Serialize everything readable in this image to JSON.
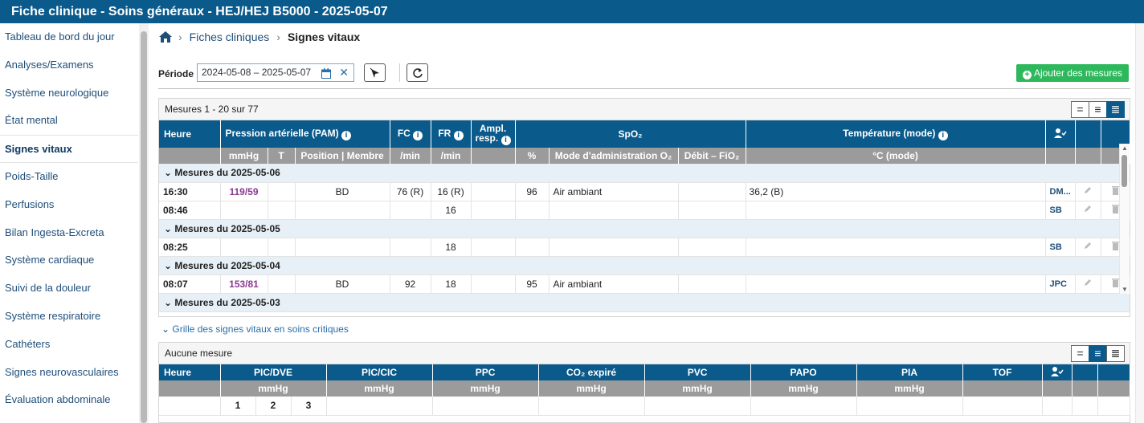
{
  "title": "Fiche clinique - Soins généraux - HEJ/HEJ B5000 - 2025-05-07",
  "sidebar": {
    "items": [
      {
        "label": "Tableau de bord du jour",
        "active": false
      },
      {
        "label": "Analyses/Examens",
        "active": false
      },
      {
        "label": "Système neurologique",
        "active": false
      },
      {
        "label": "État mental",
        "active": false
      },
      {
        "label": "Signes vitaux",
        "active": true
      },
      {
        "label": "Poids-Taille",
        "active": false
      },
      {
        "label": "Perfusions",
        "active": false
      },
      {
        "label": "Bilan Ingesta-Excreta",
        "active": false
      },
      {
        "label": "Système cardiaque",
        "active": false
      },
      {
        "label": "Suivi de la douleur",
        "active": false
      },
      {
        "label": "Système respiratoire",
        "active": false
      },
      {
        "label": "Cathéters",
        "active": false
      },
      {
        "label": "Signes neurovasculaires",
        "active": false
      },
      {
        "label": "Évaluation abdominale",
        "active": false
      }
    ]
  },
  "breadcrumb": {
    "parent": "Fiches cliniques",
    "current": "Signes vitaux"
  },
  "period": {
    "label": "Période",
    "value": "2024-05-08  –  2025-05-07",
    "clear": "✕"
  },
  "actions": {
    "add_label": "Ajouter des mesures"
  },
  "vitals": {
    "count": "Mesures 1 - 20 sur 77",
    "headers": {
      "heure": "Heure",
      "pam": "Pression artérielle (PAM)",
      "fc": "FC",
      "fr": "FR",
      "ampl": "Ampl.",
      "resp": "resp.",
      "spo2": "SpO₂",
      "temp": "Température (mode)"
    },
    "subheaders": {
      "mmhg": "mmHg",
      "t": "T",
      "position": "Position | Membre",
      "fc_unit": "/min",
      "fr_unit": "/min",
      "pct": "%",
      "mode": "Mode d'administration O₂",
      "debit": "Débit – FiO₂",
      "temp_unit": "°C (mode)"
    },
    "groups": [
      {
        "label": "Mesures du 2025-05-06",
        "rows": [
          {
            "time": "16:30",
            "bp": "119/59",
            "t": "",
            "pos": "BD",
            "fc": "76 (R)",
            "fr": "16 (R)",
            "ampl": "",
            "spo2": "96",
            "mode": "Air ambiant",
            "debit": "",
            "temp": "36,2 (B)",
            "user": "DM..."
          },
          {
            "time": "08:46",
            "bp": "",
            "t": "",
            "pos": "",
            "fc": "",
            "fr": "16",
            "ampl": "",
            "spo2": "",
            "mode": "",
            "debit": "",
            "temp": "",
            "user": "SB"
          }
        ]
      },
      {
        "label": "Mesures du 2025-05-05",
        "rows": [
          {
            "time": "08:25",
            "bp": "",
            "t": "",
            "pos": "",
            "fc": "",
            "fr": "18",
            "ampl": "",
            "spo2": "",
            "mode": "",
            "debit": "",
            "temp": "",
            "user": "SB"
          }
        ]
      },
      {
        "label": "Mesures du 2025-05-04",
        "rows": [
          {
            "time": "08:07",
            "bp": "153/81",
            "t": "",
            "pos": "BD",
            "fc": "92",
            "fr": "18",
            "ampl": "",
            "spo2": "95",
            "mode": "Air ambiant",
            "debit": "",
            "temp": "",
            "user": "JPC"
          }
        ]
      },
      {
        "label": "Mesures du 2025-05-03",
        "rows": []
      }
    ]
  },
  "critical": {
    "toggle": "Grille des signes vitaux en soins critiques",
    "count": "Aucune mesure",
    "headers": [
      "Heure",
      "PIC/DVE",
      "PIC/CIC",
      "PPC",
      "CO₂ expiré",
      "PVC",
      "PAPO",
      "PIA",
      "TOF"
    ],
    "units": [
      "",
      "mmHg",
      "mmHg",
      "mmHg",
      "mmHg",
      "mmHg",
      "mmHg",
      "mmHg",
      ""
    ],
    "sub_numbers": [
      "1",
      "2",
      "3"
    ]
  },
  "colors": {
    "header": "#0b5a8c",
    "subheader": "#9b9b9b",
    "add_button": "#2eb85c",
    "bp": "#8b3a8f"
  }
}
